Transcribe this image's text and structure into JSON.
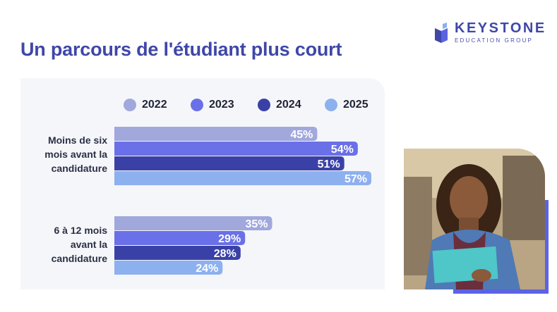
{
  "brand": {
    "name": "KEYSTONE",
    "subtitle": "EDUCATION GROUP",
    "icon": "book-icon",
    "color": "#3f47a8"
  },
  "title": "Un parcours de l'étudiant plus court",
  "chart_data": {
    "type": "bar",
    "orientation": "horizontal",
    "categories": [
      "Moins de six mois avant la candidature",
      "6 à 12 mois avant la candidature"
    ],
    "category_lines": [
      [
        "Moins de six",
        "mois avant la",
        "candidature"
      ],
      [
        "6 à 12 mois",
        "avant la",
        "candidature"
      ]
    ],
    "series": [
      {
        "name": "2022",
        "color": "#a1a8dc",
        "values": [
          45,
          35
        ]
      },
      {
        "name": "2023",
        "color": "#6a70e8",
        "values": [
          54,
          29
        ]
      },
      {
        "name": "2024",
        "color": "#3a41a6",
        "values": [
          51,
          28
        ]
      },
      {
        "name": "2025",
        "color": "#8db0ef",
        "values": [
          57,
          24
        ]
      }
    ],
    "value_suffix": "%",
    "xlim": [
      0,
      57
    ],
    "legend": "top",
    "grid": false
  },
  "photo": {
    "icon": "student-photo"
  }
}
